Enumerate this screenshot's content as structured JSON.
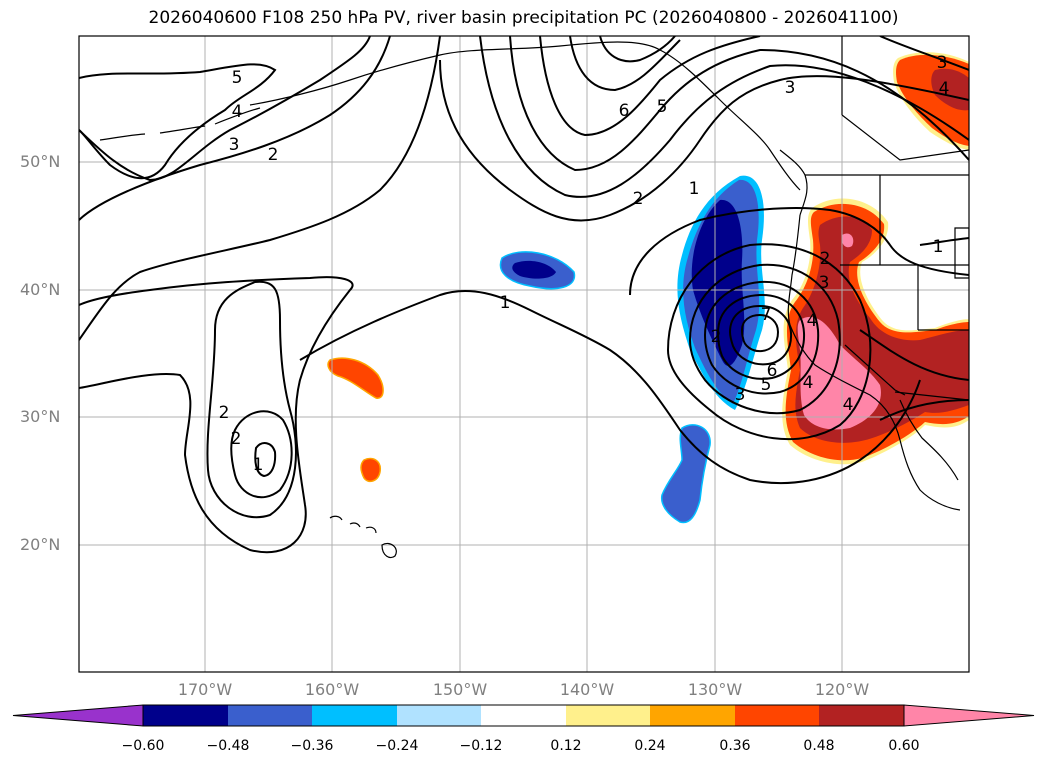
{
  "title": "2026040600 F108 250 hPa PV, river basin precipitation PC (2026040800 - 2026041100)",
  "map": {
    "lat_labels": [
      "50°N",
      "40°N",
      "30°N",
      "20°N"
    ],
    "lon_labels": [
      "170°W",
      "160°W",
      "150°W",
      "140°W",
      "130°W",
      "120°W"
    ],
    "contour_labels": [
      "5",
      "4",
      "3",
      "2",
      "6",
      "5",
      "3",
      "4",
      "2",
      "1",
      "2",
      "1",
      "1",
      "2",
      "3",
      "4",
      "7",
      "6",
      "5",
      "4",
      "3",
      "2",
      "1",
      "2",
      "3",
      "4"
    ]
  },
  "colorbar": {
    "ticks": [
      "−0.60",
      "−0.48",
      "−0.36",
      "−0.24",
      "−0.12",
      "0.12",
      "0.24",
      "0.36",
      "0.48",
      "0.60"
    ],
    "colors": [
      "#9932cc",
      "#00008b",
      "#3a5fcd",
      "#00bfff",
      "#b0e2ff",
      "#ffffff",
      "#fff08c",
      "#ffa500",
      "#ff4500",
      "#b22222",
      "#ff85a8"
    ]
  }
}
